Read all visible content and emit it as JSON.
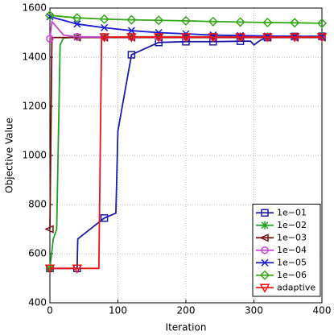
{
  "chart_data": {
    "type": "line",
    "xlabel": "Iteration",
    "ylabel": "Objective Value",
    "xlim": [
      0,
      400
    ],
    "xticks": [
      0,
      100,
      200,
      300,
      400
    ],
    "ylim": [
      400,
      1600
    ],
    "yticks": [
      400,
      600,
      800,
      1000,
      1200,
      1400,
      1600
    ],
    "grid": true,
    "legend": "lower right",
    "series": [
      {
        "name": "1e−01",
        "color": "#1c1ca8",
        "marker": "square",
        "x": [
          0,
          40,
          41,
          80,
          97,
          100,
          120,
          160,
          200,
          240,
          280,
          295,
          300,
          310,
          320,
          360,
          400
        ],
        "values": [
          540,
          540,
          660,
          745,
          765,
          1100,
          1410,
          1460,
          1463,
          1463,
          1465,
          1465,
          1450,
          1470,
          1480,
          1484,
          1485
        ]
      },
      {
        "name": "1e−02",
        "color": "#22a022",
        "marker": "star",
        "x": [
          0,
          5,
          10,
          15,
          20,
          40,
          80,
          120,
          160,
          200,
          240,
          280,
          320,
          360,
          400
        ],
        "values": [
          540,
          660,
          700,
          1450,
          1478,
          1482,
          1482,
          1483,
          1483,
          1483,
          1483,
          1484,
          1484,
          1484,
          1485
        ]
      },
      {
        "name": "1e−03",
        "color": "#7a1010",
        "marker": "triangle-left",
        "x": [
          0,
          3,
          40,
          80,
          120,
          160,
          200,
          240,
          280,
          320,
          360,
          400
        ],
        "values": [
          700,
          1480,
          1480,
          1480,
          1480,
          1480,
          1480,
          1480,
          1480,
          1480,
          1480,
          1480
        ]
      },
      {
        "name": "1e−04",
        "color": "#c844d0",
        "marker": "circle",
        "x": [
          0,
          3,
          20,
          40,
          80,
          120,
          160,
          200,
          240,
          280,
          320,
          360,
          400
        ],
        "values": [
          1475,
          1545,
          1490,
          1483,
          1482,
          1482,
          1482,
          1482,
          1482,
          1482,
          1482,
          1482,
          1482
        ]
      },
      {
        "name": "1e−05",
        "color": "#1a1ad8",
        "marker": "x",
        "x": [
          0,
          40,
          80,
          120,
          160,
          200,
          240,
          280,
          320,
          360,
          400
        ],
        "values": [
          1565,
          1535,
          1520,
          1508,
          1500,
          1495,
          1490,
          1488,
          1486,
          1485,
          1484
        ]
      },
      {
        "name": "1e−06",
        "color": "#34a814",
        "marker": "diamond",
        "x": [
          0,
          40,
          80,
          120,
          160,
          200,
          240,
          280,
          320,
          360,
          400
        ],
        "values": [
          1570,
          1560,
          1555,
          1552,
          1550,
          1548,
          1545,
          1543,
          1541,
          1540,
          1538
        ]
      },
      {
        "name": "adaptive",
        "color": "#ee1111",
        "marker": "triangle-down",
        "x": [
          0,
          40,
          72,
          76,
          80,
          120,
          160,
          200,
          240,
          280,
          320,
          360,
          400
        ],
        "values": [
          540,
          540,
          540,
          1480,
          1482,
          1482,
          1482,
          1482,
          1482,
          1482,
          1482,
          1482,
          1482
        ]
      }
    ]
  }
}
